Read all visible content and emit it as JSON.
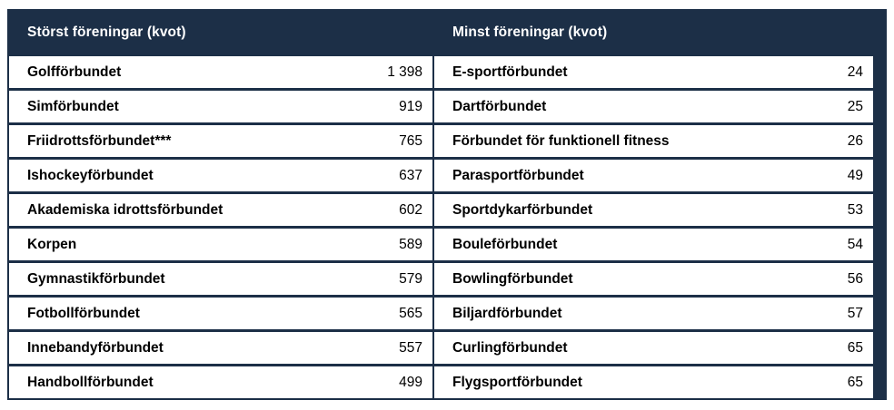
{
  "colors": {
    "navy": "#1c2f47",
    "row_bg": "#ffffff",
    "text": "#000000",
    "header_text": "#ffffff"
  },
  "table": {
    "left": {
      "title": "Störst föreningar (kvot)",
      "rows": [
        {
          "name": "Golfförbundet",
          "value": "1 398"
        },
        {
          "name": "Simförbundet",
          "value": "919"
        },
        {
          "name": "Friidrottsförbundet***",
          "value": "765"
        },
        {
          "name": "Ishockeyförbundet",
          "value": "637"
        },
        {
          "name": "Akademiska idrottsförbundet",
          "value": "602"
        },
        {
          "name": "Korpen",
          "value": "589"
        },
        {
          "name": "Gymnastikförbundet",
          "value": "579"
        },
        {
          "name": "Fotbollförbundet",
          "value": "565"
        },
        {
          "name": "Innebandyförbundet",
          "value": "557"
        },
        {
          "name": "Handbollförbundet",
          "value": "499"
        }
      ]
    },
    "right": {
      "title": "Minst föreningar (kvot)",
      "rows": [
        {
          "name": "E-sportförbundet",
          "value": "24"
        },
        {
          "name": "Dartförbundet",
          "value": "25"
        },
        {
          "name": "Förbundet för funktionell fitness",
          "value": "26"
        },
        {
          "name": "Parasportförbundet",
          "value": "49"
        },
        {
          "name": "Sportdykarförbundet",
          "value": "53"
        },
        {
          "name": "Bouleförbundet",
          "value": "54"
        },
        {
          "name": "Bowlingförbundet",
          "value": "56"
        },
        {
          "name": "Biljardförbundet",
          "value": "57"
        },
        {
          "name": "Curlingförbundet",
          "value": "65"
        },
        {
          "name": "Flygsportförbundet",
          "value": "65"
        }
      ]
    }
  }
}
